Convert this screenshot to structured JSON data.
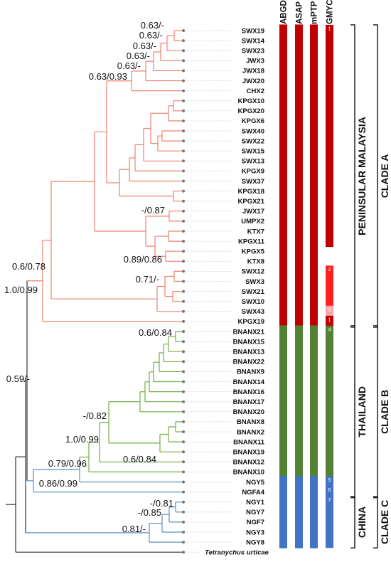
{
  "columns": [
    "ABGD",
    "ASAP",
    "mPTP",
    "GMYC"
  ],
  "colors": {
    "peninsular": "#c00000",
    "thailand": "#538135",
    "china": "#4472c4",
    "clade_a_branch": "#f08070",
    "clade_b_branch": "#70ad47",
    "clade_c_branch": "#5b8dc8",
    "root_branch": "#333333",
    "gmyc_2": "#ff2020",
    "gmyc_3": "#f4a8a8"
  },
  "taxa": [
    "SWX19",
    "SWX14",
    "SWX23",
    "JWX3",
    "JWX18",
    "JWX20",
    "CHX2",
    "KPGX10",
    "KPGX20",
    "KPGX6",
    "SWX40",
    "SWX22",
    "SWX15",
    "SWX13",
    "KPGX9",
    "SWX37",
    "KPGX18",
    "KPGX21",
    "JWX17",
    "UMPX2",
    "KTX7",
    "KPGX11",
    "KPGX5",
    "KTX8",
    "SWX12",
    "SWX3",
    "SWX21",
    "SWX10",
    "SWX43",
    "KPGX19",
    "BNANX21",
    "BNANX15",
    "BNANX13",
    "BNANX22",
    "BNANX9",
    "BNANX14",
    "BNANX16",
    "BNANX17",
    "BNANX20",
    "BNANX8",
    "BNANX2",
    "BNANX11",
    "BNANX19",
    "BNANX12",
    "BNANX10",
    "NGY5",
    "NGFA4",
    "NGY1",
    "NGY7",
    "NGF7",
    "NGY3",
    "NGY8",
    "Tetranychus urticae"
  ],
  "support_labels": [
    {
      "id": "s1",
      "text": "0.63/-"
    },
    {
      "id": "s2",
      "text": "0.63/-"
    },
    {
      "id": "s3",
      "text": "0.63/-"
    },
    {
      "id": "s4",
      "text": "0.63/-"
    },
    {
      "id": "s5",
      "text": "0.63/-"
    },
    {
      "id": "s6",
      "text": "0.63/0.93"
    },
    {
      "id": "s7",
      "text": "-/0.87"
    },
    {
      "id": "s8",
      "text": "0.89/0.86"
    },
    {
      "id": "s9",
      "text": "0.71/-"
    },
    {
      "id": "s10",
      "text": "0.6/0.78"
    },
    {
      "id": "s11",
      "text": "1.0/0.99"
    },
    {
      "id": "s12",
      "text": "0.6/0.84"
    },
    {
      "id": "s13",
      "text": "-/0.82"
    },
    {
      "id": "s14",
      "text": "1.0/0.99"
    },
    {
      "id": "s15",
      "text": "0.6/0.84"
    },
    {
      "id": "s16",
      "text": "0.79/0.96"
    },
    {
      "id": "s17",
      "text": "0.86/0.99"
    },
    {
      "id": "s18",
      "text": "0.59/-"
    },
    {
      "id": "s19",
      "text": "-/0.81"
    },
    {
      "id": "s20",
      "text": "-/0.85"
    },
    {
      "id": "s21",
      "text": "0.81/-"
    }
  ],
  "gmyc_clusters": [
    {
      "label": "1",
      "from": "SWX19",
      "to": "KPGX11",
      "color": "#c00000"
    },
    {
      "label": "2",
      "from": "SWX12",
      "to": "SWX10",
      "color": "#ff2020"
    },
    {
      "label": "3",
      "from": "SWX43",
      "to": "SWX43",
      "color": "#f4a8a8"
    },
    {
      "label": "1",
      "from": "KPGX19",
      "to": "KPGX19",
      "color": "#c00000"
    },
    {
      "label": "4",
      "from": "BNANX21",
      "to": "BNANX10",
      "color": "#538135"
    },
    {
      "label": "5",
      "from": "NGY5",
      "to": "NGY5",
      "color": "#4472c4"
    },
    {
      "label": "6",
      "from": "NGFA4",
      "to": "NGFA4",
      "color": "#4472c4"
    },
    {
      "label": "7",
      "from": "NGY1",
      "to": "NGY8",
      "color": "#4472c4"
    }
  ],
  "regions": [
    {
      "label": "PENINSULAR MALAYSIA",
      "from": "SWX19",
      "to": "KPGX19"
    },
    {
      "label": "THAILAND",
      "from": "BNANX21",
      "to": "NGFA4"
    },
    {
      "label": "CHINA",
      "from": "NGY1",
      "to": "NGY8"
    }
  ],
  "clades": [
    {
      "label": "CLADE A",
      "from": "SWX19",
      "to": "KPGX19"
    },
    {
      "label": "CLADE B",
      "from": "BNANX21",
      "to": "NGFA4"
    },
    {
      "label": "CLADE C",
      "from": "NGY1",
      "to": "NGY8"
    }
  ]
}
